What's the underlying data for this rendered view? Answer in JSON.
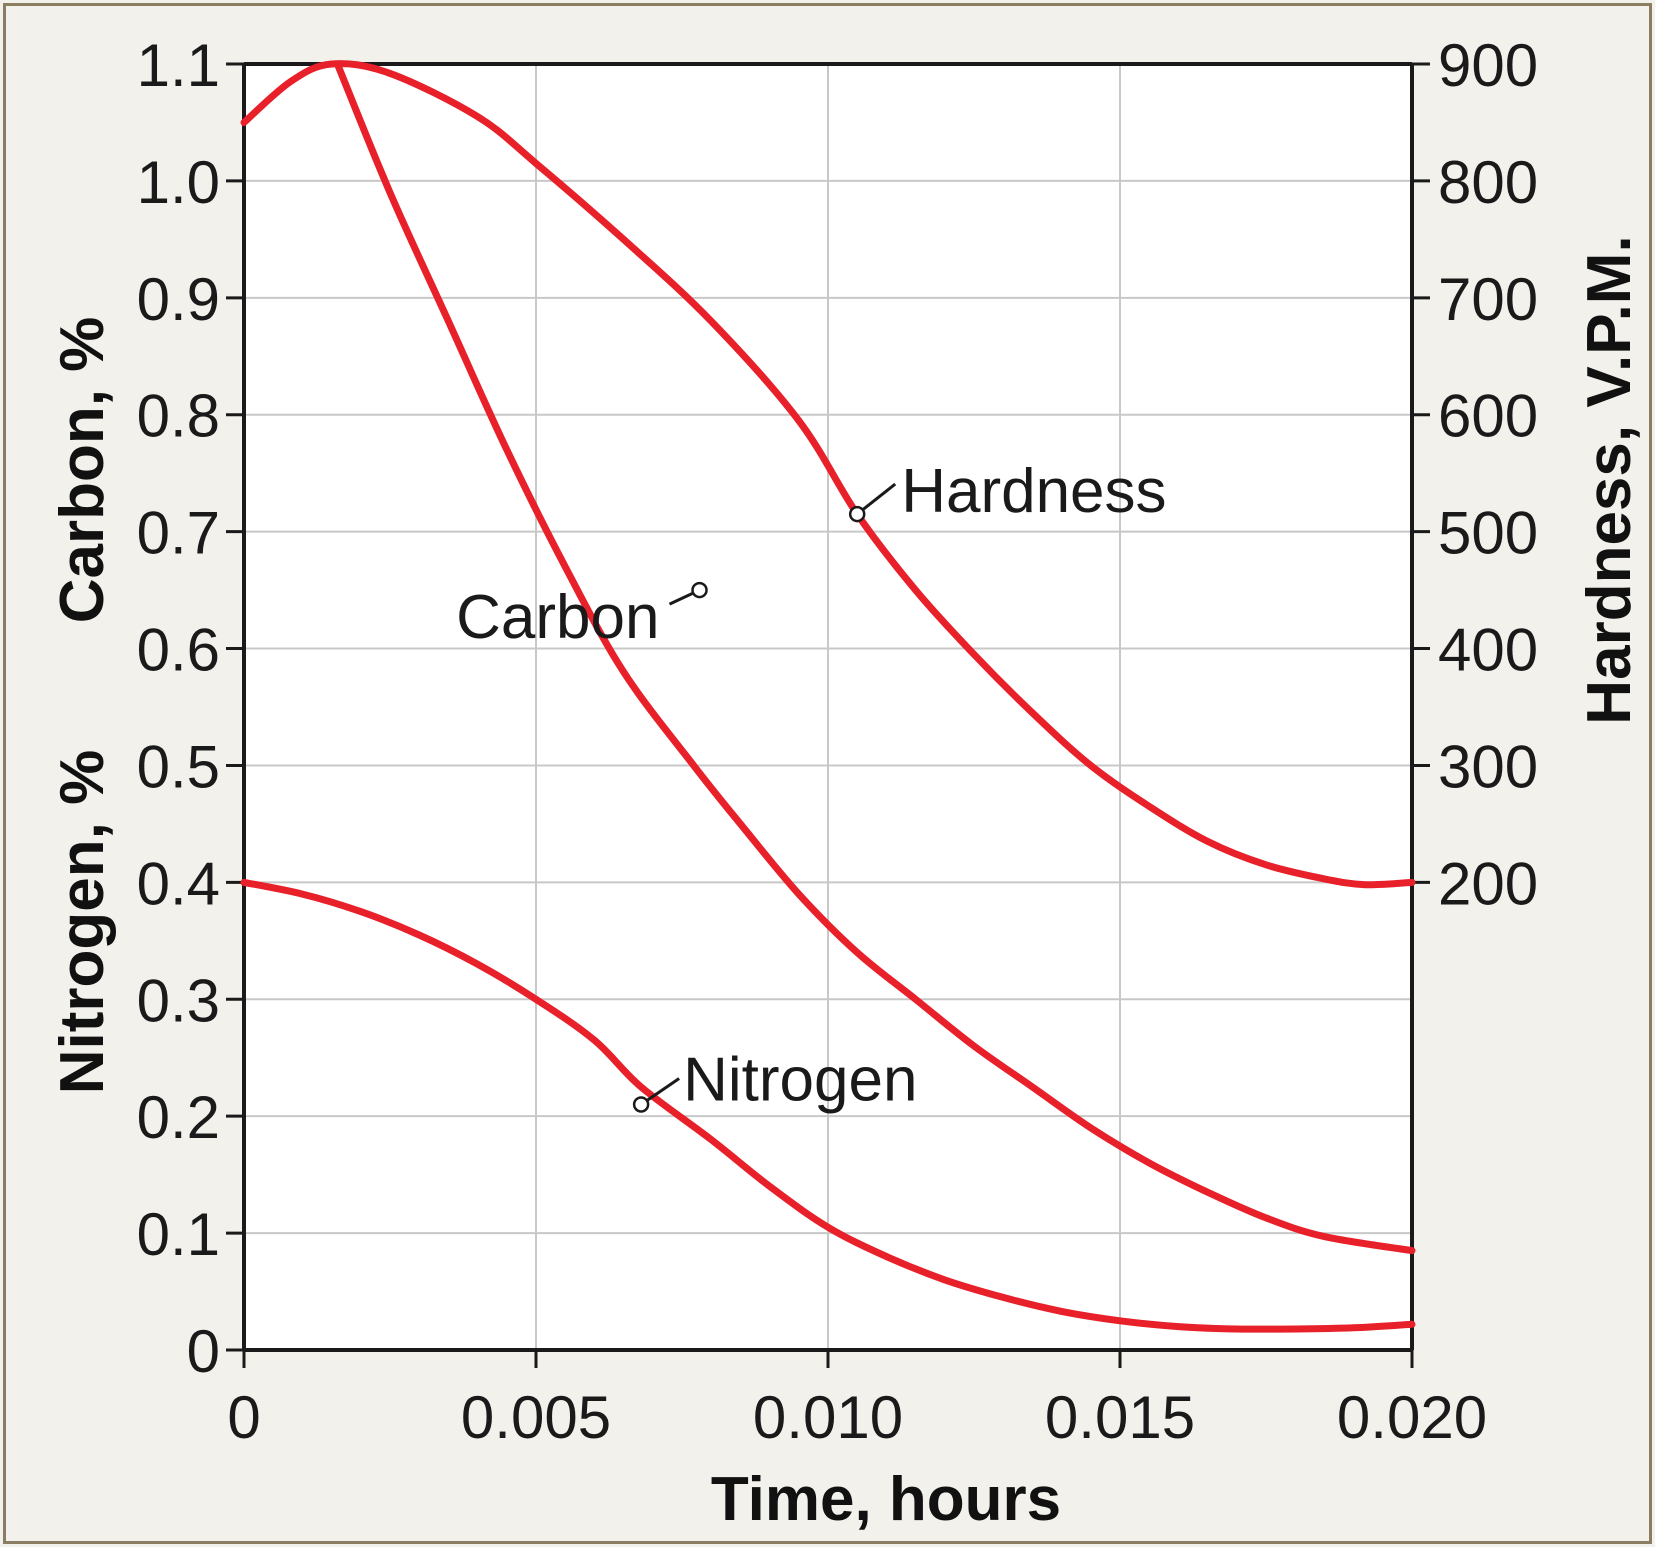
{
  "chart_data": {
    "type": "line",
    "xlabel": "Time, hours",
    "ylabel_left_top": "Carbon, %",
    "ylabel_left_bottom": "Nitrogen, %",
    "ylabel_right": "Hardness, V.P.M.",
    "xlim": [
      0,
      0.02
    ],
    "ylim_left": [
      0,
      1.1
    ],
    "ylim_right": [
      200,
      900
    ],
    "x_ticks": [
      "0",
      "0.005",
      "0.010",
      "0.015",
      "0.020"
    ],
    "y_left_ticks": [
      "0",
      "0.1",
      "0.2",
      "0.3",
      "0.4",
      "0.5",
      "0.6",
      "0.7",
      "0.8",
      "0.9",
      "1.0",
      "1.1"
    ],
    "y_right_ticks": [
      "200",
      "300",
      "400",
      "500",
      "600",
      "700",
      "800",
      "900"
    ],
    "grid": true,
    "line_color": "#e8202a",
    "series": [
      {
        "name": "Hardness",
        "axis": "right",
        "x": [
          0,
          0.0008,
          0.0015,
          0.0025,
          0.004,
          0.005,
          0.0065,
          0.008,
          0.0095,
          0.0105,
          0.0115,
          0.0125,
          0.0135,
          0.0145,
          0.0155,
          0.0165,
          0.0175,
          0.0185,
          0.0192,
          0.02
        ],
        "y": [
          850,
          885,
          900,
          892,
          855,
          815,
          750,
          680,
          595,
          515,
          450,
          395,
          345,
          300,
          265,
          235,
          215,
          203,
          198,
          200
        ]
      },
      {
        "name": "Carbon",
        "axis": "left",
        "x": [
          0.0016,
          0.0025,
          0.0035,
          0.0045,
          0.0055,
          0.0065,
          0.0077,
          0.0085,
          0.0095,
          0.0105,
          0.0115,
          0.0125,
          0.0135,
          0.0145,
          0.0155,
          0.0165,
          0.0175,
          0.0185,
          0.02
        ],
        "y": [
          1.1,
          0.99,
          0.88,
          0.77,
          0.67,
          0.58,
          0.5,
          0.45,
          0.39,
          0.34,
          0.3,
          0.26,
          0.225,
          0.19,
          0.16,
          0.135,
          0.113,
          0.097,
          0.085
        ]
      },
      {
        "name": "Nitrogen",
        "axis": "left",
        "x": [
          0,
          0.001,
          0.002,
          0.003,
          0.004,
          0.005,
          0.006,
          0.0068,
          0.008,
          0.009,
          0.01,
          0.011,
          0.012,
          0.013,
          0.014,
          0.015,
          0.016,
          0.017,
          0.018,
          0.019,
          0.02
        ],
        "y": [
          0.4,
          0.39,
          0.375,
          0.355,
          0.33,
          0.3,
          0.265,
          0.225,
          0.18,
          0.14,
          0.105,
          0.08,
          0.06,
          0.045,
          0.033,
          0.025,
          0.02,
          0.018,
          0.018,
          0.019,
          0.022
        ]
      }
    ],
    "annotations": [
      {
        "text": "Hardness",
        "series": "Hardness",
        "x": 0.0105,
        "y": 515
      },
      {
        "text": "Carbon",
        "series": "Carbon",
        "x": 0.0078,
        "y": 0.65
      },
      {
        "text": "Nitrogen",
        "series": "Nitrogen",
        "x": 0.0068,
        "y": 0.21
      }
    ]
  }
}
